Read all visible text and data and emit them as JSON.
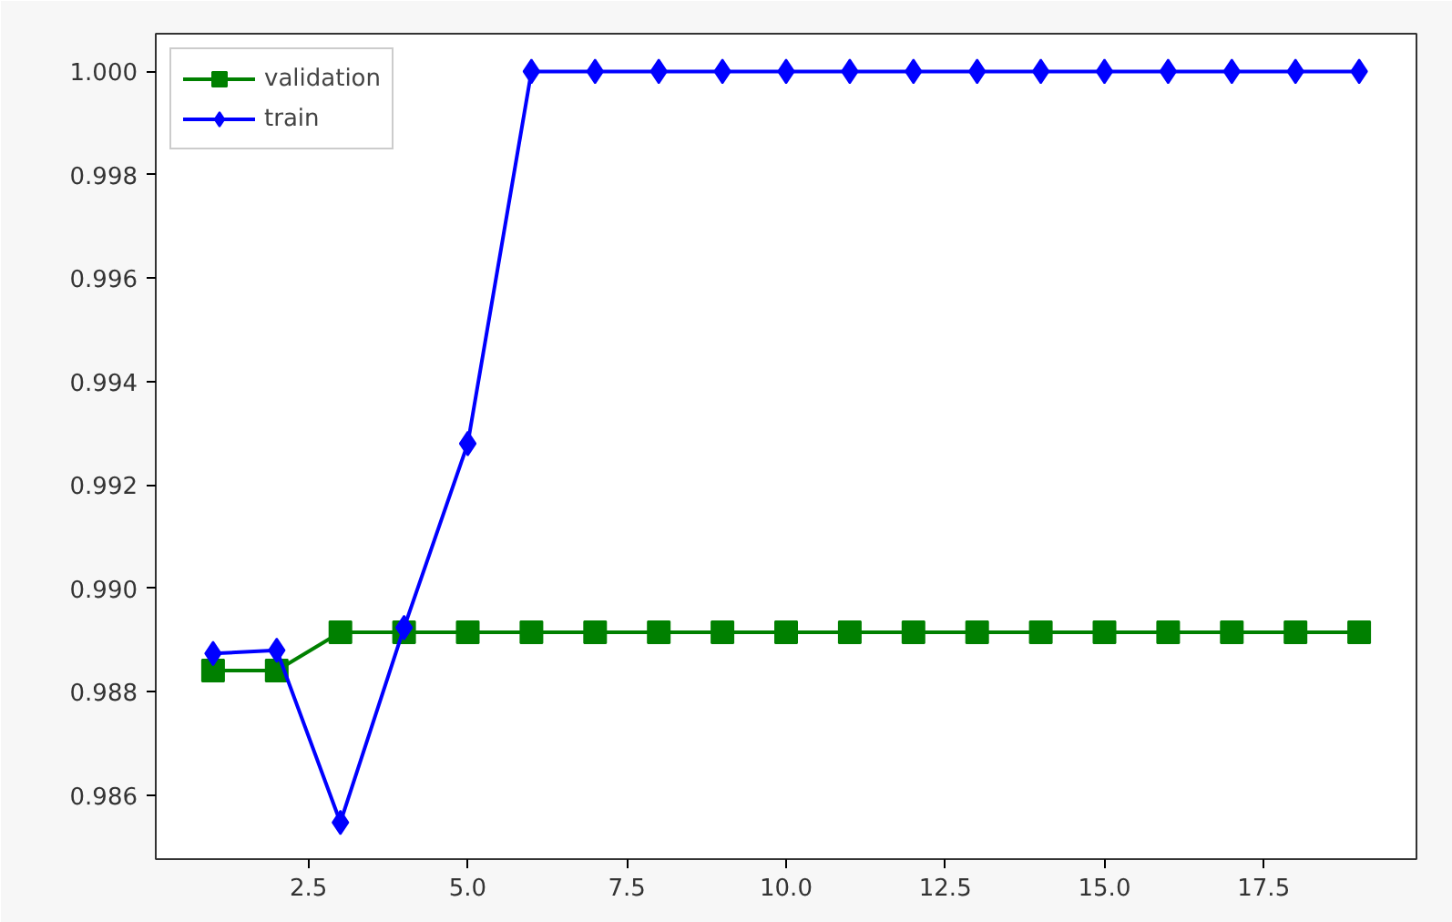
{
  "chart_data": {
    "type": "line",
    "x": [
      1,
      2,
      3,
      4,
      5,
      6,
      7,
      8,
      9,
      10,
      11,
      12,
      13,
      14,
      15,
      16,
      17,
      18,
      19
    ],
    "series": [
      {
        "name": "validation",
        "color": "#008000",
        "marker": "square",
        "values": [
          0.98841,
          0.98841,
          0.98915,
          0.98915,
          0.98915,
          0.98915,
          0.98915,
          0.98915,
          0.98915,
          0.98915,
          0.98915,
          0.98915,
          0.98915,
          0.98915,
          0.98915,
          0.98915,
          0.98915,
          0.98915,
          0.98915
        ]
      },
      {
        "name": "train",
        "color": "#0000ff",
        "marker": "diamond",
        "values": [
          0.98874,
          0.9888,
          0.98547,
          0.98924,
          0.9928,
          1.0,
          1.0,
          1.0,
          1.0,
          1.0,
          1.0,
          1.0,
          1.0,
          1.0,
          1.0,
          1.0,
          1.0,
          1.0,
          1.0
        ]
      }
    ],
    "xlim": [
      0.1,
      19.9
    ],
    "ylim": [
      0.98476,
      1.00073
    ],
    "xticks": [
      {
        "value": 2.5,
        "label": "2.5"
      },
      {
        "value": 5,
        "label": "5.0"
      },
      {
        "value": 7.5,
        "label": "7.5"
      },
      {
        "value": 10,
        "label": "10.0"
      },
      {
        "value": 12.5,
        "label": "12.5"
      },
      {
        "value": 15,
        "label": "15.0"
      },
      {
        "value": 17.5,
        "label": "17.5"
      }
    ],
    "yticks": [
      {
        "value": 0.986,
        "label": "0.986"
      },
      {
        "value": 0.988,
        "label": "0.988"
      },
      {
        "value": 0.99,
        "label": "0.990"
      },
      {
        "value": 0.992,
        "label": "0.992"
      },
      {
        "value": 0.994,
        "label": "0.994"
      },
      {
        "value": 0.996,
        "label": "0.996"
      },
      {
        "value": 0.998,
        "label": "0.998"
      },
      {
        "value": 1.0,
        "label": "1.000"
      }
    ],
    "grid": false,
    "legend": "top left",
    "line_style": "solid"
  }
}
